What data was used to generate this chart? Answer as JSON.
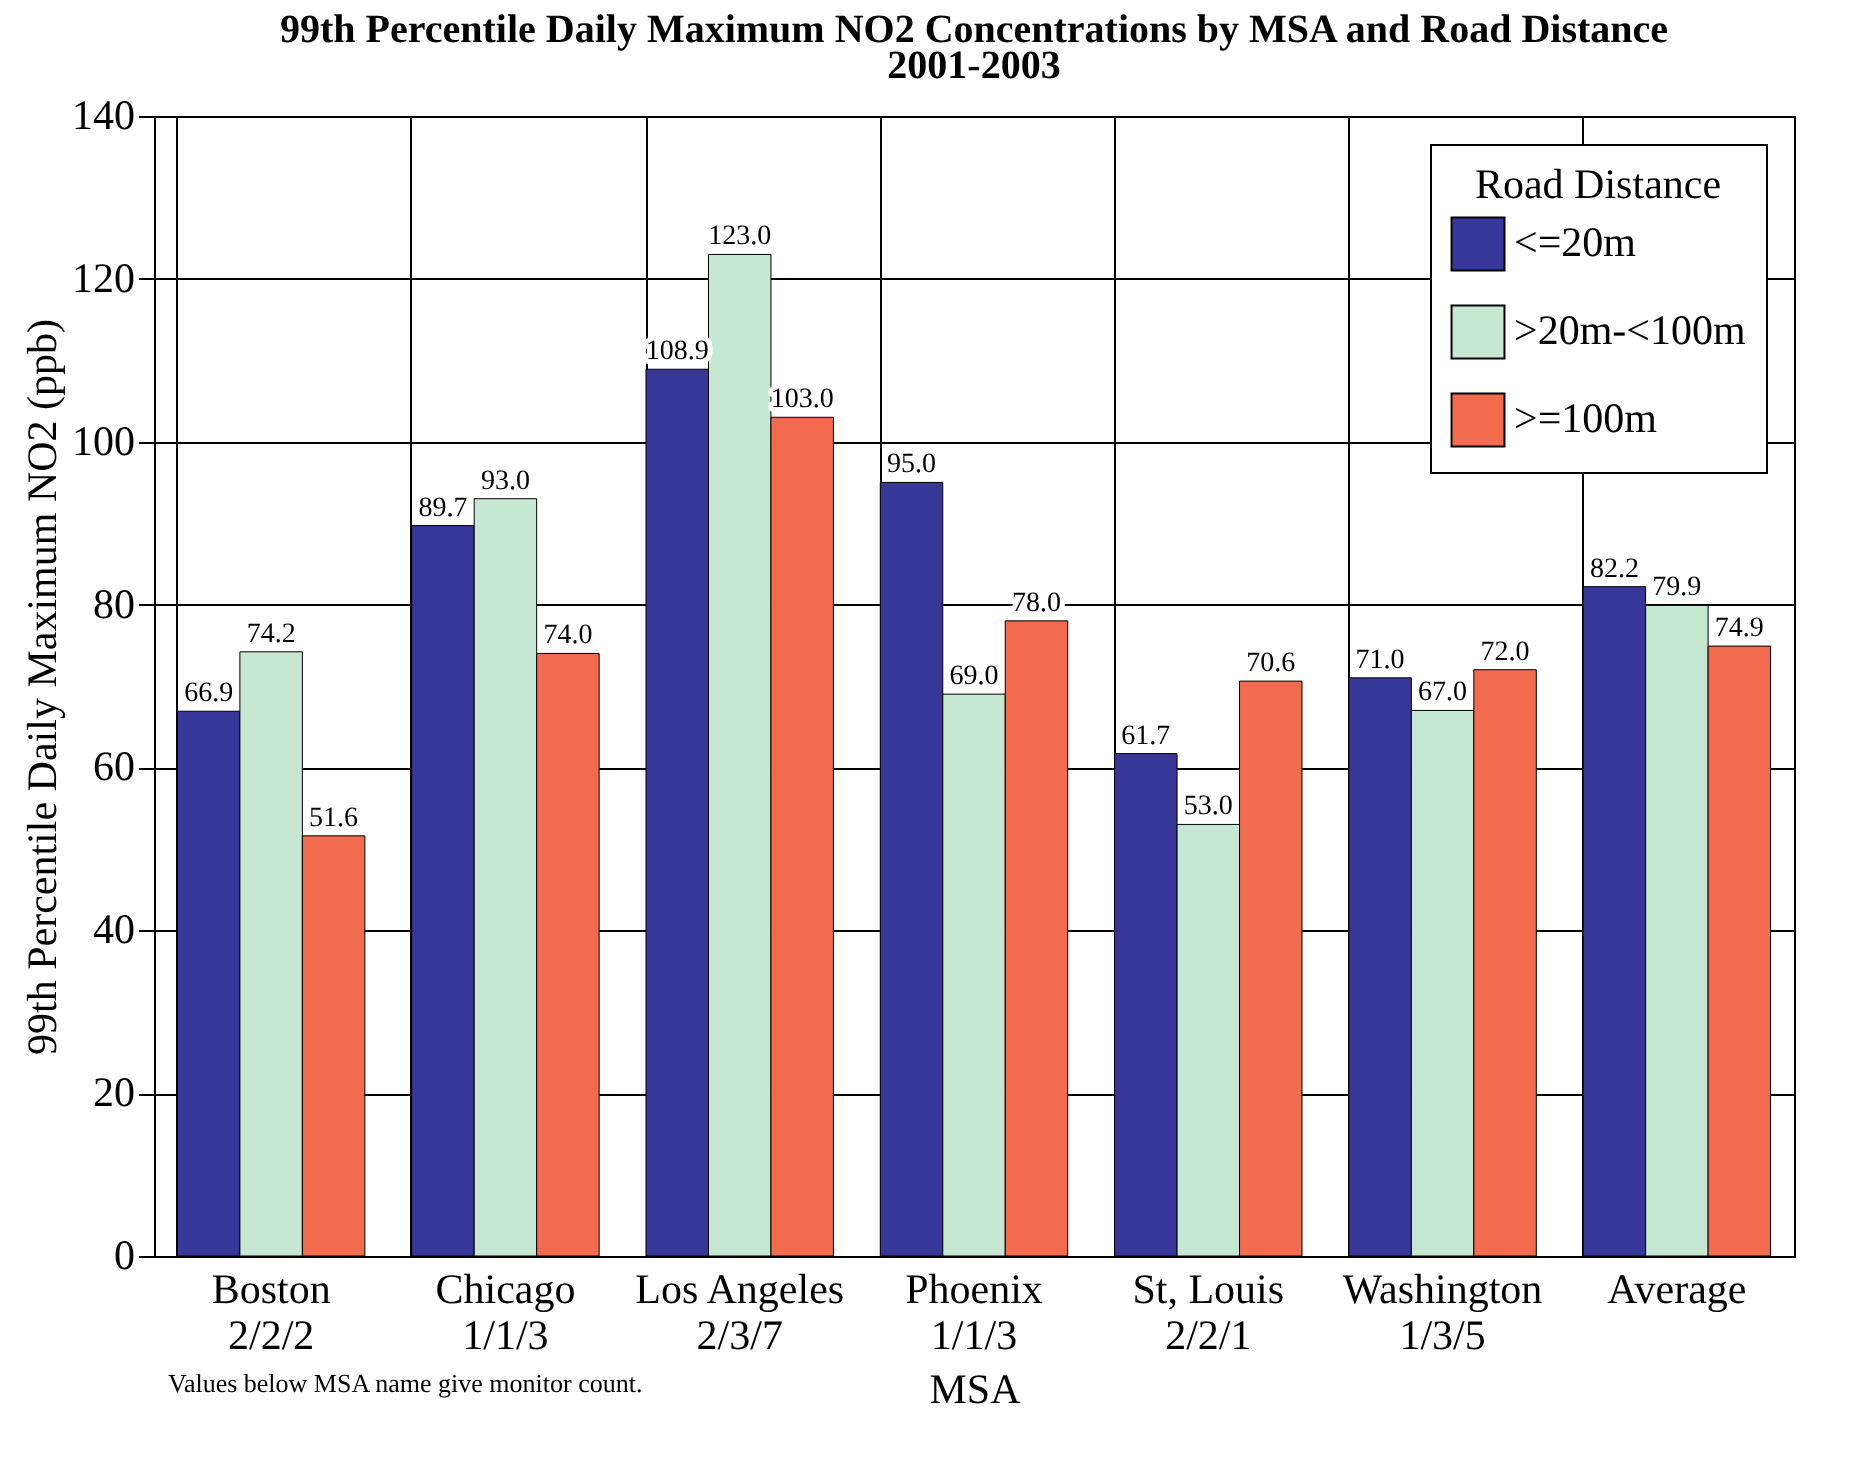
{
  "chart_data": {
    "type": "bar",
    "title": [
      "99th Percentile Daily Maximum NO2 Concentrations by MSA and Road Distance",
      "2001-2003"
    ],
    "xlabel": "MSA",
    "ylabel": "99th Percentile Daily Maximum NO2 (ppb)",
    "categories": [
      "Boston\n2/2/2",
      "Chicago\n1/1/3",
      "Los Angeles\n2/3/7",
      "Phoenix\n1/1/3",
      "St, Louis\n2/2/1",
      "Washington\n1/3/5",
      "Average"
    ],
    "series": [
      {
        "name": "<=20m",
        "color": "#37379a",
        "values": [
          66.9,
          89.7,
          108.9,
          95.0,
          61.7,
          71.0,
          82.2
        ],
        "value_labels": [
          "66.9",
          "89.7",
          "108.9",
          "95.0",
          "61.7",
          "71.0",
          "82.2"
        ]
      },
      {
        "name": ">20m-<100m",
        "color": "#c6e8d2",
        "values": [
          74.2,
          93.0,
          123.0,
          69.0,
          53.0,
          67.0,
          79.9
        ],
        "value_labels": [
          "74.2",
          "93.0",
          "123.0",
          "69.0",
          "53.0",
          "67.0",
          "79.9"
        ]
      },
      {
        "name": ">=100m",
        "color": "#f26b4f",
        "values": [
          51.6,
          74.0,
          103.0,
          78.0,
          70.6,
          72.0,
          74.9
        ],
        "value_labels": [
          "51.6",
          "74.0",
          "103.0",
          "78.0",
          "70.6",
          "72.0",
          "74.9"
        ]
      }
    ],
    "ylim": [
      0,
      140
    ],
    "yticks": [
      0,
      20,
      40,
      60,
      80,
      100,
      120,
      140
    ],
    "grid": true,
    "legend": "top right",
    "legend_title": "Road Distance",
    "annotations": [
      "Values below MSA name give monitor count."
    ]
  }
}
